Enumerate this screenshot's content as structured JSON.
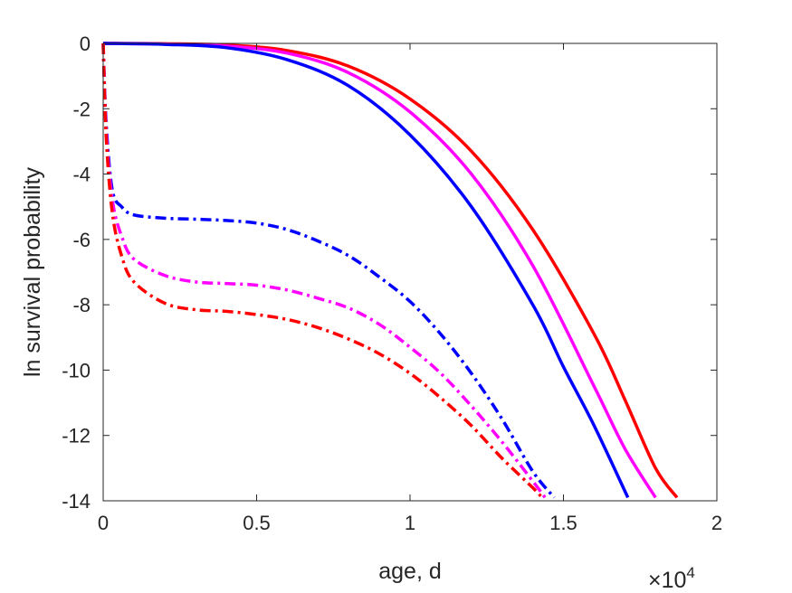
{
  "chart_data": {
    "type": "line",
    "xlabel": "age, d",
    "ylabel": "ln survival probability",
    "x_exponent_label": "×10",
    "x_exponent_power": "4",
    "xlim": [
      0,
      20000
    ],
    "ylim": [
      -14,
      0
    ],
    "x_ticks": [
      0,
      5000,
      10000,
      15000,
      20000
    ],
    "x_tick_labels": [
      "0",
      "0.5",
      "1",
      "1.5",
      "2"
    ],
    "y_ticks": [
      0,
      -2,
      -4,
      -6,
      -8,
      -10,
      -12,
      -14
    ],
    "y_tick_labels": [
      "0",
      "-2",
      "-4",
      "-6",
      "-8",
      "-10",
      "-12",
      "-14"
    ],
    "grid": false,
    "colors": {
      "red": "#ff0000",
      "magenta": "#ff00ff",
      "blue": "#0000ff",
      "axis": "#262626"
    },
    "series": [
      {
        "color": "#ff0000",
        "style": "solid",
        "x": [
          0,
          2000,
          4000,
          6000,
          8000,
          10000,
          12000,
          14000,
          16000,
          17000,
          18000,
          18700
        ],
        "y": [
          0,
          -0.01,
          -0.05,
          -0.22,
          -0.7,
          -1.7,
          -3.3,
          -5.7,
          -8.9,
          -10.9,
          -13.0,
          -13.9
        ]
      },
      {
        "color": "#ff00ff",
        "style": "solid",
        "x": [
          0,
          2000,
          4000,
          6000,
          8000,
          10000,
          12000,
          14000,
          16000,
          17000,
          18000
        ],
        "y": [
          0,
          -0.02,
          -0.08,
          -0.3,
          -0.9,
          -2.1,
          -4.0,
          -6.8,
          -10.5,
          -12.4,
          -13.9
        ]
      },
      {
        "color": "#0000ff",
        "style": "solid",
        "x": [
          0,
          2000,
          4000,
          6000,
          8000,
          10000,
          12000,
          14000,
          15000,
          16000,
          17100
        ],
        "y": [
          0,
          -0.03,
          -0.13,
          -0.5,
          -1.3,
          -2.8,
          -5.0,
          -8.0,
          -9.9,
          -11.7,
          -13.9
        ]
      },
      {
        "color": "#0000ff",
        "style": "dashdot",
        "x": [
          0,
          100,
          300,
          600,
          1000,
          2000,
          3000,
          4000,
          5000,
          6000,
          7000,
          8000,
          9000,
          10000,
          11000,
          12000,
          13000,
          14000,
          14700
        ],
        "y": [
          0,
          -2.5,
          -4.5,
          -5.0,
          -5.25,
          -5.35,
          -5.38,
          -5.42,
          -5.5,
          -5.7,
          -6.05,
          -6.5,
          -7.15,
          -7.9,
          -8.9,
          -10.1,
          -11.5,
          -13.1,
          -13.9
        ]
      },
      {
        "color": "#ff00ff",
        "style": "dashdot",
        "x": [
          0,
          100,
          300,
          600,
          1000,
          2000,
          3000,
          4000,
          5000,
          6000,
          7000,
          8000,
          9000,
          10000,
          11000,
          12000,
          13000,
          14000,
          14400
        ],
        "y": [
          0,
          -2.7,
          -4.8,
          -5.9,
          -6.6,
          -7.1,
          -7.3,
          -7.35,
          -7.4,
          -7.55,
          -7.8,
          -8.1,
          -8.6,
          -9.3,
          -10.1,
          -11.1,
          -12.2,
          -13.4,
          -13.9
        ]
      },
      {
        "color": "#ff0000",
        "style": "dashdot",
        "x": [
          0,
          100,
          300,
          600,
          1000,
          2000,
          3000,
          4000,
          5000,
          6000,
          7000,
          8000,
          9000,
          10000,
          11000,
          12000,
          13000,
          14000,
          14300
        ],
        "y": [
          0,
          -2.9,
          -5.2,
          -6.5,
          -7.3,
          -7.95,
          -8.15,
          -8.2,
          -8.3,
          -8.45,
          -8.7,
          -9.05,
          -9.5,
          -10.1,
          -10.85,
          -11.7,
          -12.7,
          -13.6,
          -13.9
        ]
      }
    ]
  }
}
